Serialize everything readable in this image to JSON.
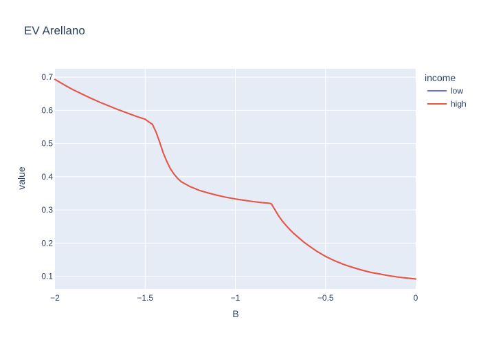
{
  "chart_data": {
    "type": "line",
    "title": "EV Arellano",
    "xlabel": "B",
    "ylabel": "value",
    "xlim": [
      -2,
      0
    ],
    "ylim": [
      0.062,
      0.725
    ],
    "x_ticks": [
      -2,
      -1.5,
      -1,
      -0.5,
      0
    ],
    "x_tick_labels": [
      "−2",
      "−1.5",
      "−1",
      "−0.5",
      "0"
    ],
    "y_ticks": [
      0.1,
      0.2,
      0.3,
      0.4,
      0.5,
      0.6,
      0.7
    ],
    "y_tick_labels": [
      "0.1",
      "0.2",
      "0.3",
      "0.4",
      "0.5",
      "0.6",
      "0.7"
    ],
    "grid": true,
    "legend": {
      "title": "income",
      "placement": "right"
    },
    "x": [
      -2.0,
      -1.95,
      -1.9,
      -1.85,
      -1.8,
      -1.75,
      -1.7,
      -1.65,
      -1.6,
      -1.55,
      -1.5,
      -1.48,
      -1.46,
      -1.44,
      -1.42,
      -1.4,
      -1.38,
      -1.36,
      -1.34,
      -1.32,
      -1.3,
      -1.25,
      -1.2,
      -1.15,
      -1.1,
      -1.05,
      -1.0,
      -0.95,
      -0.9,
      -0.85,
      -0.81,
      -0.8,
      -0.78,
      -0.76,
      -0.74,
      -0.72,
      -0.7,
      -0.68,
      -0.65,
      -0.62,
      -0.6,
      -0.55,
      -0.5,
      -0.45,
      -0.4,
      -0.35,
      -0.3,
      -0.25,
      -0.2,
      -0.15,
      -0.1,
      -0.05,
      0.0
    ],
    "series": [
      {
        "name": "low",
        "color": "#636efa",
        "values": [
          0.693,
          0.677,
          0.662,
          0.649,
          0.636,
          0.624,
          0.613,
          0.602,
          0.592,
          0.582,
          0.573,
          0.565,
          0.558,
          0.535,
          0.505,
          0.472,
          0.446,
          0.424,
          0.408,
          0.395,
          0.385,
          0.37,
          0.359,
          0.351,
          0.344,
          0.338,
          0.333,
          0.329,
          0.325,
          0.322,
          0.32,
          0.318,
          0.3,
          0.282,
          0.267,
          0.254,
          0.242,
          0.231,
          0.217,
          0.203,
          0.195,
          0.176,
          0.16,
          0.147,
          0.136,
          0.127,
          0.119,
          0.112,
          0.107,
          0.102,
          0.098,
          0.095,
          0.092
        ]
      },
      {
        "name": "high",
        "color": "#ef553b",
        "values": [
          0.693,
          0.677,
          0.662,
          0.649,
          0.636,
          0.624,
          0.613,
          0.602,
          0.592,
          0.582,
          0.573,
          0.565,
          0.558,
          0.535,
          0.505,
          0.472,
          0.446,
          0.424,
          0.408,
          0.395,
          0.385,
          0.37,
          0.359,
          0.351,
          0.344,
          0.338,
          0.333,
          0.329,
          0.325,
          0.322,
          0.32,
          0.318,
          0.3,
          0.282,
          0.267,
          0.254,
          0.242,
          0.231,
          0.217,
          0.203,
          0.195,
          0.176,
          0.16,
          0.147,
          0.136,
          0.127,
          0.119,
          0.112,
          0.107,
          0.102,
          0.098,
          0.095,
          0.092
        ]
      }
    ]
  }
}
